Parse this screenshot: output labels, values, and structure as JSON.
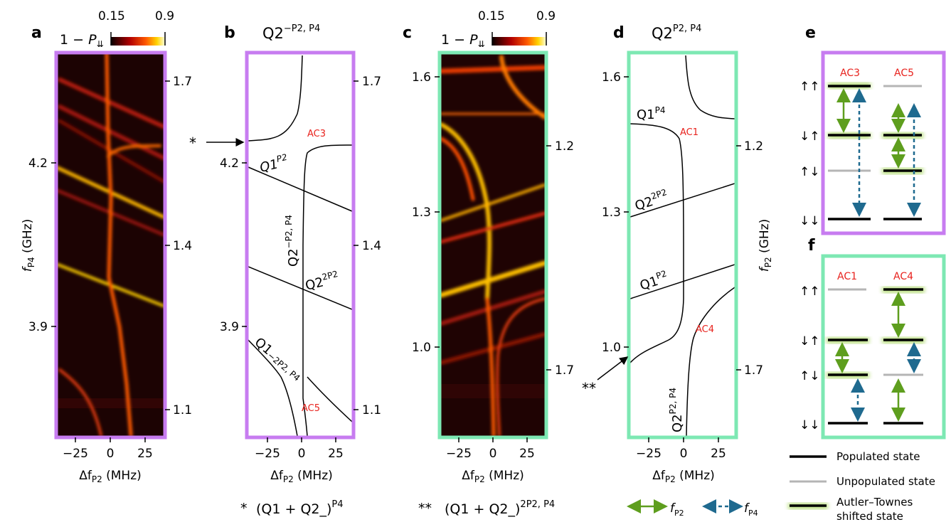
{
  "panel_labels": {
    "a": "a",
    "b": "b",
    "c": "c",
    "d": "d",
    "e": "e",
    "f": "f"
  },
  "colorbar": {
    "min": "0.15",
    "max": "0.9",
    "label": "1 − P",
    "label_sub": "⇊"
  },
  "axes": {
    "x_label": "Δf",
    "x_sub": "P2",
    "x_unit": " (MHz)",
    "x_ticks": [
      "−25",
      "0",
      "25"
    ],
    "a_y_label": "f",
    "a_y_sub": "P4",
    "a_y_unit": " (GHz)",
    "a_y_ticks": [
      "4.2",
      "3.9"
    ],
    "a_right_ticks": [
      "1.7",
      "1.4",
      "1.1"
    ],
    "b_left_ticks": [
      "4.2",
      "3.9"
    ],
    "b_right_ticks": [
      "1.7",
      "1.4",
      "1.1"
    ],
    "c_left_ticks": [
      "1.6",
      "1.3",
      "1.0"
    ],
    "c_right_ticks": [
      "1.2",
      "1.7"
    ],
    "d_left_ticks": [
      "1.6",
      "1.3",
      "1.0"
    ],
    "d_right_ticks": [
      "1.2",
      "1.7"
    ],
    "d_y_label": "f",
    "d_y_sub": "P2",
    "d_y_unit": " (GHz)"
  },
  "panel_b": {
    "title_main": "Q2",
    "title_sup": "−P2, P4",
    "labels": {
      "q1p2_main": "Q1",
      "q1p2_sup": "P2",
      "q2_main": "Q2",
      "q2_sup": "−P2, P4",
      "q22p2_main": "Q2",
      "q22p2_sup": "2P2",
      "q1_main": "Q1",
      "q1_sub": "−2P2, P4",
      "ac3": "AC3",
      "ac5": "AC5"
    },
    "marker": "*"
  },
  "panel_d": {
    "title_main": "Q2",
    "title_sup": "P2, P4",
    "labels": {
      "q1p4_main": "Q1",
      "q1p4_sup": "P4",
      "q22p2_main": "Q2",
      "q22p2_sup": "2P2",
      "q1p2_main": "Q1",
      "q1p2_sup": "P2",
      "q2_main": "Q2",
      "q2_sup": "P2, P4",
      "ac1": "AC1",
      "ac4": "AC4"
    },
    "marker": "**"
  },
  "footnotes": {
    "star": "*",
    "star_text": "(Q1 + Q2_)",
    "star_sup": "P4",
    "dstar": "**",
    "dstar_text": "(Q1 + Q2_)",
    "dstar_sup": "2P2, P4"
  },
  "panel_e": {
    "ac3": "AC3",
    "ac5": "AC5"
  },
  "panel_f": {
    "ac1": "AC1",
    "ac4": "AC4"
  },
  "states": [
    "↑↑",
    "↓↑",
    "↑↓",
    "↓↓"
  ],
  "legend": {
    "populated": "Populated state",
    "unpopulated": "Unpopulated state",
    "autler_1": "Autler–Townes",
    "autler_2": "shifted state",
    "fp2": "f",
    "fp2_sub": "P2",
    "fp4": "f",
    "fp4_sub": "P4"
  },
  "colors": {
    "purple": "#c77cf0",
    "mint": "#7de8b3",
    "red": "#e8221d",
    "green": "#5e9e1e",
    "blue": "#1f6a8f",
    "grey": "#b5b5b5"
  }
}
